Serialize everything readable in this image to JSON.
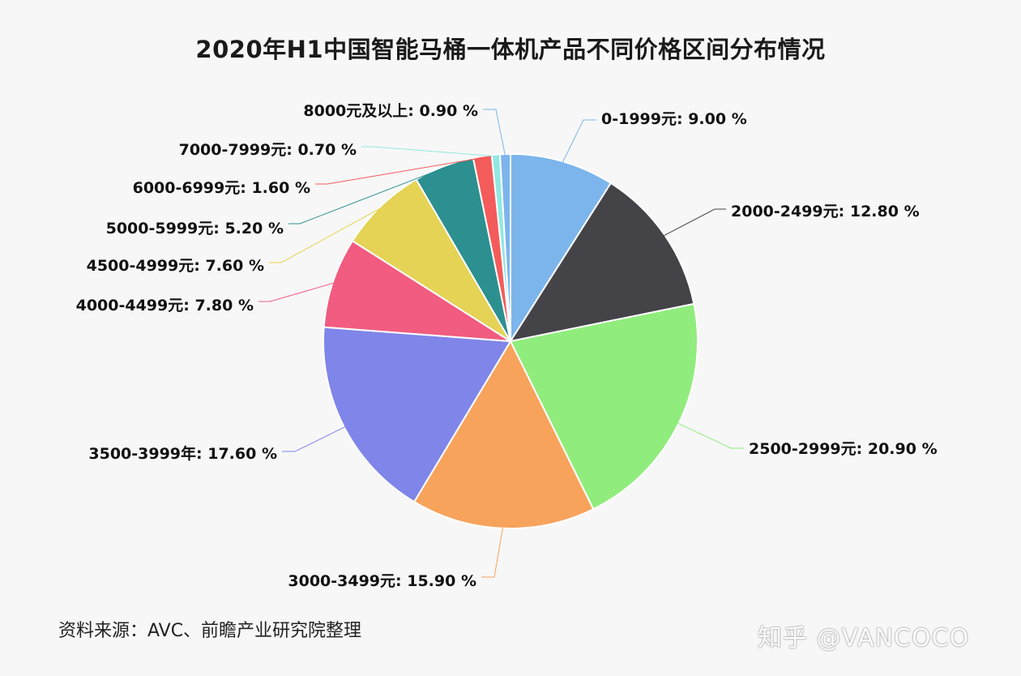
{
  "title": "2020年H1中国智能马桶一体机产品不同价格区间分布情况",
  "source": "资料来源：AVC、前瞻产业研究院整理",
  "watermark": "知乎 @VANCOCO",
  "chart_data": {
    "type": "pie",
    "title": "2020年H1中国智能马桶一体机产品不同价格区间分布情况",
    "unit": "%",
    "slices": [
      {
        "label": "0-1999元",
        "value": 9.0,
        "text": "0-1999元: 9.00 %",
        "color": "#7cb5ec"
      },
      {
        "label": "2000-2499元",
        "value": 12.8,
        "text": "2000-2499元: 12.80 %",
        "color": "#434348"
      },
      {
        "label": "2500-2999元",
        "value": 20.9,
        "text": "2500-2999元: 20.90 %",
        "color": "#90ed7d"
      },
      {
        "label": "3000-3499元",
        "value": 15.9,
        "text": "3000-3499元: 15.90 %",
        "color": "#f7a35c"
      },
      {
        "label": "3500-3999年",
        "value": 17.6,
        "text": "3500-3999年: 17.60 %",
        "color": "#8085e9"
      },
      {
        "label": "4000-4499元",
        "value": 7.8,
        "text": "4000-4499元: 7.80 %",
        "color": "#f15c80"
      },
      {
        "label": "4500-4999元",
        "value": 7.6,
        "text": "4500-4999元: 7.60 %",
        "color": "#e4d354"
      },
      {
        "label": "5000-5999元",
        "value": 5.2,
        "text": "5000-5999元: 5.20 %",
        "color": "#2b908f"
      },
      {
        "label": "6000-6999元",
        "value": 1.6,
        "text": "6000-6999元: 1.60 %",
        "color": "#f45b5b"
      },
      {
        "label": "7000-7999元",
        "value": 0.7,
        "text": "7000-7999元: 0.70 %",
        "color": "#91e8e1"
      },
      {
        "label": "8000元及以上",
        "value": 0.9,
        "text": "8000元及以上: 0.90 %",
        "color": "#7cb5ec"
      }
    ]
  }
}
